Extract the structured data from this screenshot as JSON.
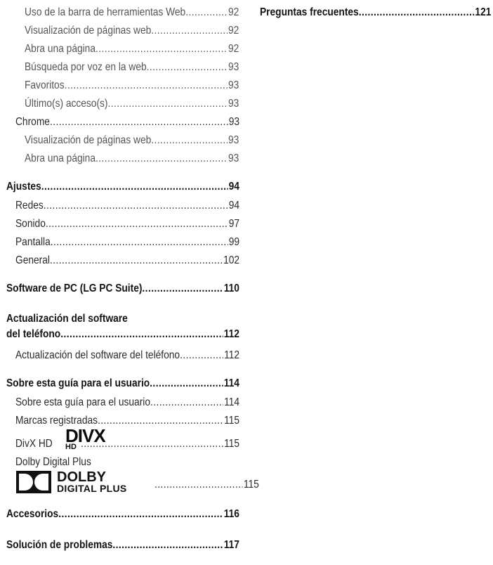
{
  "toc_left": [
    {
      "text": "Uso de la barra de herramientas Web",
      "page": "92",
      "level": 2
    },
    {
      "text": "Visualización de páginas web",
      "page": "92",
      "level": 2
    },
    {
      "text": "Abra una página",
      "page": "92",
      "level": 2
    },
    {
      "text": "Búsqueda por voz en la web",
      "page": "93",
      "level": 2
    },
    {
      "text": "Favoritos",
      "page": "93",
      "level": 2
    },
    {
      "text": "Último(s) acceso(s)",
      "page": "93",
      "level": 2
    },
    {
      "text": "Chrome",
      "page": "93",
      "level": 1
    },
    {
      "text": "Visualización de páginas web",
      "page": "93",
      "level": 2
    },
    {
      "text": "Abra una página",
      "page": "93",
      "level": 2
    },
    {
      "text": "Ajustes",
      "page": "94",
      "level": 0
    },
    {
      "text": "Redes",
      "page": "94",
      "level": 1
    },
    {
      "text": "Sonido",
      "page": "97",
      "level": 1
    },
    {
      "text": "Pantalla",
      "page": "99",
      "level": 1
    },
    {
      "text": "General",
      "page": "102",
      "level": 1
    },
    {
      "text": "Software de PC (LG PC Suite)",
      "page": "110",
      "level": 0
    },
    {
      "text": "Actualización del software",
      "page": "",
      "level": 0
    },
    {
      "text": "del teléfono",
      "page": "112",
      "level": 0
    },
    {
      "text": "Actualización del software del teléfono",
      "page": "112",
      "level": 1
    },
    {
      "text": "Sobre esta guía para el usuario",
      "page": "114",
      "level": 0
    },
    {
      "text": "Sobre esta guía para el usuario",
      "page": "114",
      "level": 1
    },
    {
      "text": "Marcas registradas",
      "page": "115",
      "level": 1
    },
    {
      "text": "DivX HD",
      "page": "115",
      "level": 1
    },
    {
      "text": "Dolby Digital Plus",
      "page": "",
      "level": 1
    },
    {
      "text": "",
      "page": "115",
      "level": 1
    },
    {
      "text": "Accesorios",
      "page": "116",
      "level": 0
    },
    {
      "text": "Solución de problemas",
      "page": "117",
      "level": 0
    }
  ],
  "toc_right": [
    {
      "text": "Preguntas frecuentes",
      "page": "121",
      "level": 0
    }
  ],
  "logos": {
    "divx": {
      "main": "DIVX",
      "sub": "HD"
    },
    "dolby": {
      "main": "DOLBY",
      "sub": "DIGITAL PLUS"
    }
  }
}
